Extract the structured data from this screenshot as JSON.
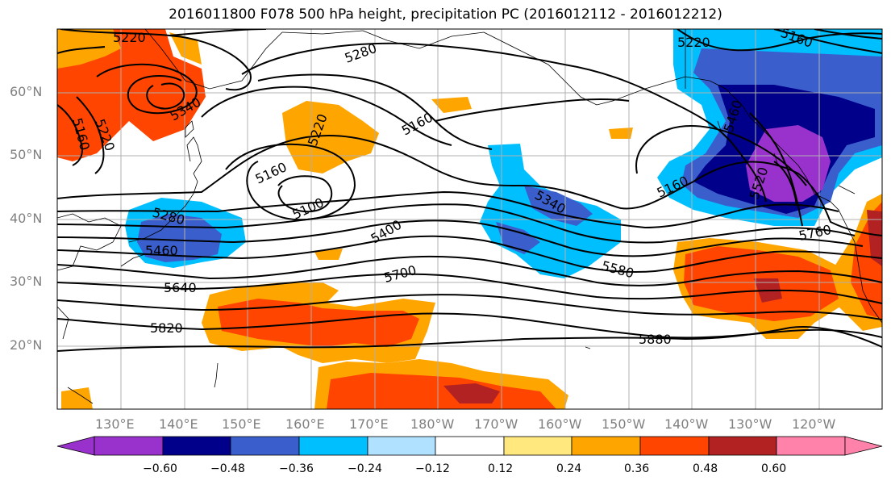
{
  "title": "2016011800 F078 500 hPa height, precipitation PC (2016012112 - 2016012212)",
  "lat_labels": [
    "60°N",
    "50°N",
    "40°N",
    "30°N",
    "20°N"
  ],
  "lon_labels": [
    "130°E",
    "140°E",
    "150°E",
    "160°E",
    "170°E",
    "180°W",
    "170°W",
    "160°W",
    "150°W",
    "140°W",
    "130°W",
    "120°W"
  ],
  "contour_labels": [
    "5220",
    "5280",
    "5340",
    "5220",
    "5160",
    "5160",
    "5220",
    "5160",
    "5100",
    "5280",
    "5460",
    "5400",
    "5340",
    "5640",
    "5700",
    "5580",
    "5820",
    "5880",
    "5220",
    "5160",
    "5160",
    "5520",
    "5460",
    "5760"
  ],
  "colorbar": {
    "colors": [
      "#9932cc",
      "#00008b",
      "#3a5fcd",
      "#00bfff",
      "#b0e2ff",
      "#ffffff",
      "#ffe97f",
      "#ffa500",
      "#ff4500",
      "#b22222",
      "#ff82ab"
    ],
    "tick_labels": [
      "−0.60",
      "−0.48",
      "−0.36",
      "−0.24",
      "−0.12",
      "0.12",
      "0.24",
      "0.36",
      "0.48",
      "0.60"
    ]
  },
  "colors": {
    "contour": "#000000",
    "grid": "#b0b0b0",
    "coast": "#000000"
  }
}
